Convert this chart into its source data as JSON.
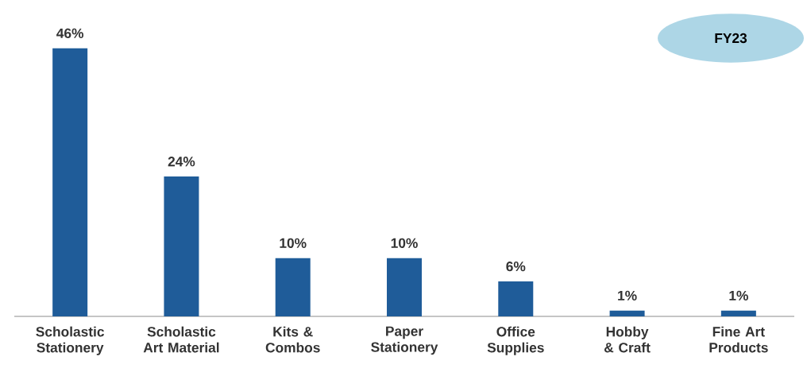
{
  "chart_data": {
    "type": "bar",
    "categories": [
      "Scholastic Stationery",
      "Scholastic Art Material",
      "Kits & Combos",
      "Paper Stationery",
      "Office Supplies",
      "Hobby & Craft",
      "Fine Art Products"
    ],
    "values": [
      46,
      24,
      10,
      10,
      6,
      1,
      1
    ],
    "value_labels": [
      "46%",
      "24%",
      "10%",
      "10%",
      "6%",
      "1%",
      "1%"
    ],
    "color": "#1f5c99",
    "annotations": [
      "FY23"
    ]
  }
}
